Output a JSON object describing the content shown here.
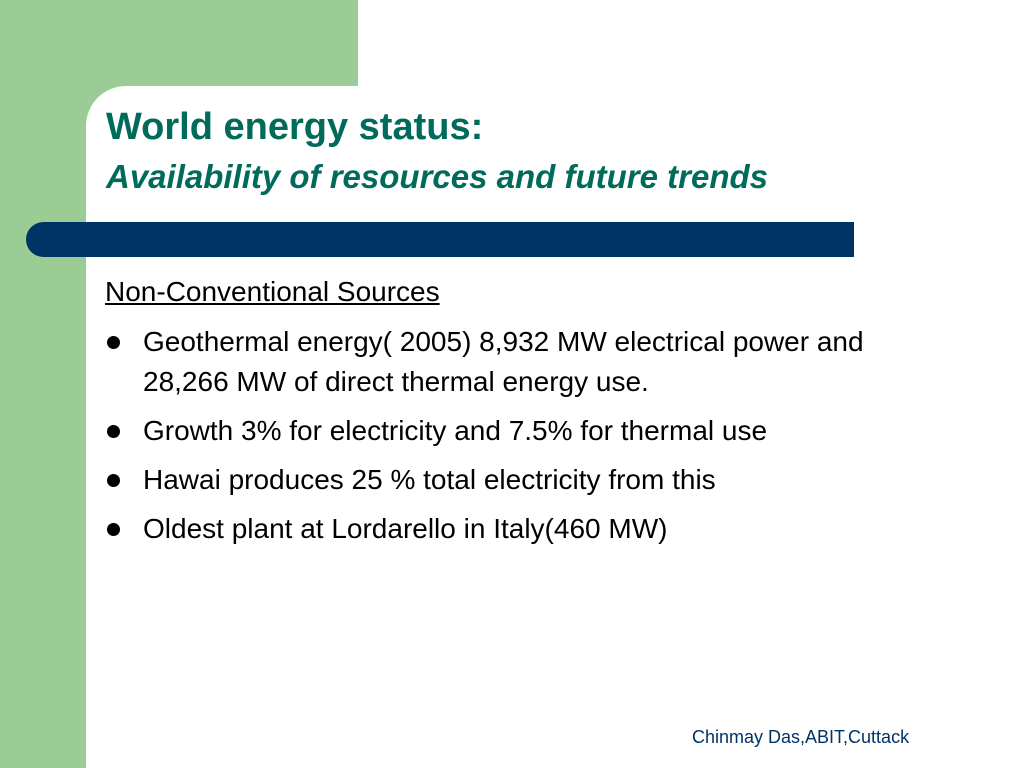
{
  "header": {
    "title": "World energy status:",
    "subtitle": "Availability of resources and future trends"
  },
  "section": {
    "heading": "Non-Conventional Sources",
    "bullets": [
      "Geothermal energy( 2005) 8,932 MW electrical power and 28,266 MW of direct thermal energy use.",
      "Growth 3% for electricity and 7.5% for thermal use",
      "Hawai produces 25 % total electricity from this",
      "Oldest plant at Lordarello in Italy(460 MW)"
    ]
  },
  "footer": {
    "author": "Chinmay Das,ABIT,Cuttack"
  }
}
